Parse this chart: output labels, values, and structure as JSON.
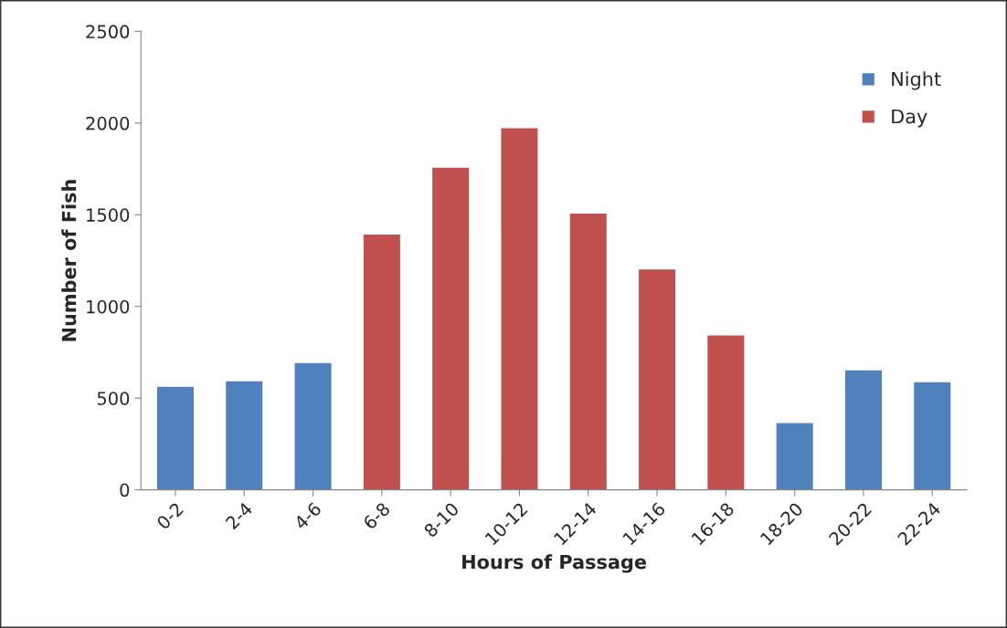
{
  "chart_data": {
    "type": "bar",
    "xlabel": "Hours of Passage",
    "ylabel": "Number of Fish",
    "categories": [
      "0-2",
      "2-4",
      "4-6",
      "6-8",
      "8-10",
      "10-12",
      "12-14",
      "14-16",
      "16-18",
      "18-20",
      "20-22",
      "22-24"
    ],
    "series": [
      {
        "name": "Night",
        "color": "#4f81bd",
        "values": [
          565,
          595,
          695,
          null,
          null,
          null,
          null,
          null,
          null,
          368,
          655,
          590
        ]
      },
      {
        "name": "Day",
        "color": "#c0504d",
        "values": [
          null,
          null,
          null,
          1395,
          1760,
          1975,
          1510,
          1205,
          845,
          null,
          null,
          null
        ]
      }
    ],
    "ylim": [
      0,
      2500
    ],
    "yticks": [
      0,
      500,
      1000,
      1500,
      2000,
      2500
    ],
    "grid": false,
    "legend": "top right"
  }
}
